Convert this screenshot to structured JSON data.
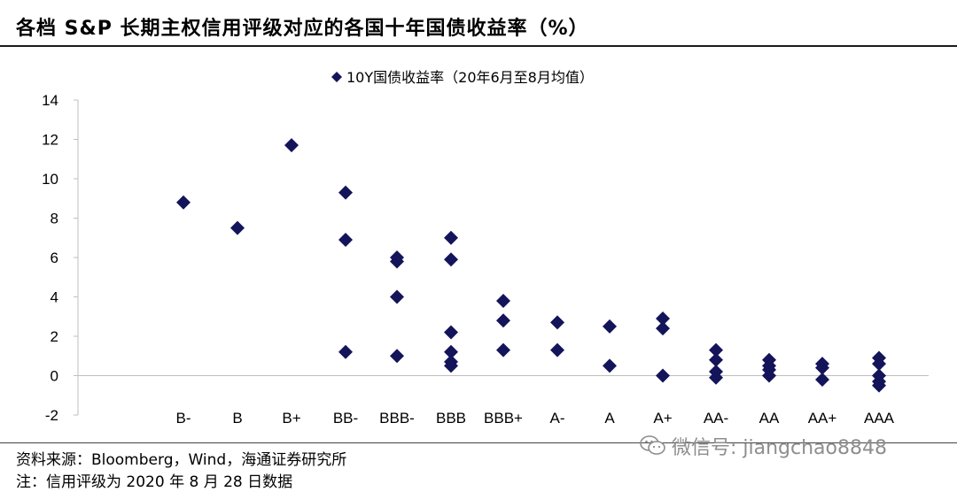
{
  "title": "各档 S&P 长期主权信用评级对应的各国十年国债收益率（%）",
  "footer": {
    "source": "资料来源：Bloomberg，Wind，海通证券研究所",
    "note": "注：信用评级为 2020 年 8 月 28 日数据"
  },
  "watermark": {
    "text": "微信号: jiangchao8848",
    "icon": "wechat-icon",
    "color": "#8e8e8e"
  },
  "chart_data": {
    "type": "scatter",
    "title": "",
    "xlabel": "",
    "ylabel": "",
    "categories": [
      "B-",
      "B",
      "B+",
      "BB-",
      "BBB-",
      "BBB",
      "BBB+",
      "A-",
      "A",
      "A+",
      "AA-",
      "AA",
      "AA+",
      "AAA"
    ],
    "ylim": [
      -2,
      14
    ],
    "yticks": [
      -2,
      0,
      2,
      4,
      6,
      8,
      10,
      12,
      14
    ],
    "grid": false,
    "legend_position": "top-center",
    "series": [
      {
        "name": "10Y国债收益率（20年6月至8月均值）",
        "marker": "diamond",
        "color": "#14145a",
        "points": [
          {
            "x": "B-",
            "y": 8.8
          },
          {
            "x": "B",
            "y": 7.5
          },
          {
            "x": "B+",
            "y": 11.7
          },
          {
            "x": "BB-",
            "y": 9.3
          },
          {
            "x": "BB-",
            "y": 6.9
          },
          {
            "x": "BB-",
            "y": 1.2
          },
          {
            "x": "BBB-",
            "y": 6.0
          },
          {
            "x": "BBB-",
            "y": 5.8
          },
          {
            "x": "BBB-",
            "y": 4.0
          },
          {
            "x": "BBB-",
            "y": 1.0
          },
          {
            "x": "BBB",
            "y": 7.0
          },
          {
            "x": "BBB",
            "y": 5.9
          },
          {
            "x": "BBB",
            "y": 2.2
          },
          {
            "x": "BBB",
            "y": 1.2
          },
          {
            "x": "BBB",
            "y": 0.7
          },
          {
            "x": "BBB",
            "y": 0.5
          },
          {
            "x": "BBB+",
            "y": 3.8
          },
          {
            "x": "BBB+",
            "y": 2.8
          },
          {
            "x": "BBB+",
            "y": 1.3
          },
          {
            "x": "A-",
            "y": 2.7
          },
          {
            "x": "A-",
            "y": 1.3
          },
          {
            "x": "A",
            "y": 2.5
          },
          {
            "x": "A",
            "y": 0.5
          },
          {
            "x": "A+",
            "y": 2.9
          },
          {
            "x": "A+",
            "y": 2.4
          },
          {
            "x": "A+",
            "y": 0.0
          },
          {
            "x": "AA-",
            "y": 1.3
          },
          {
            "x": "AA-",
            "y": 0.8
          },
          {
            "x": "AA-",
            "y": 0.2
          },
          {
            "x": "AA-",
            "y": -0.1
          },
          {
            "x": "AA",
            "y": 0.8
          },
          {
            "x": "AA",
            "y": 0.5
          },
          {
            "x": "AA",
            "y": 0.3
          },
          {
            "x": "AA",
            "y": 0.0
          },
          {
            "x": "AA+",
            "y": 0.6
          },
          {
            "x": "AA+",
            "y": 0.4
          },
          {
            "x": "AA+",
            "y": -0.2
          },
          {
            "x": "AAA",
            "y": 0.9
          },
          {
            "x": "AAA",
            "y": 0.6
          },
          {
            "x": "AAA",
            "y": 0.0
          },
          {
            "x": "AAA",
            "y": -0.3
          },
          {
            "x": "AAA",
            "y": -0.5
          }
        ]
      }
    ]
  }
}
